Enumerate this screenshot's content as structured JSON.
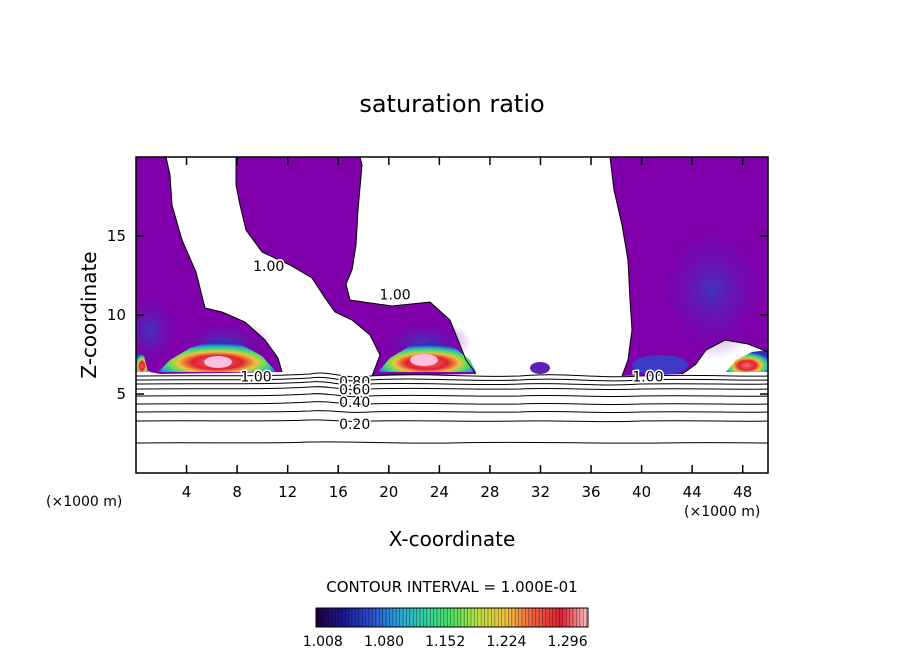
{
  "chart_data": {
    "type": "contour",
    "title": "saturation ratio",
    "xlabel": "X-coordinate",
    "ylabel": "Z-coordinate",
    "x_unit_label": "(×1000 m)",
    "xlim": [
      0,
      50
    ],
    "ylim": [
      0,
      20
    ],
    "x_ticks": [
      "4",
      "8",
      "12",
      "16",
      "20",
      "24",
      "28",
      "32",
      "36",
      "40",
      "44",
      "48"
    ],
    "y_ticks": [
      "5",
      "10",
      "15"
    ],
    "contour_interval_text": "CONTOUR INTERVAL = 1.000E-01",
    "contour_labels": [
      {
        "text": "1.00",
        "x": 10.5,
        "y": 13.1
      },
      {
        "text": "1.00",
        "x": 20.5,
        "y": 11.3
      },
      {
        "text": "1.00",
        "x": 9.5,
        "y": 6.1
      },
      {
        "text": "1.00",
        "x": 40.5,
        "y": 6.1
      },
      {
        "text": "0.80",
        "x": 17.3,
        "y": 5.8
      },
      {
        "text": "0.60",
        "x": 17.3,
        "y": 5.3
      },
      {
        "text": "0.40",
        "x": 17.3,
        "y": 4.5
      },
      {
        "text": "0.20",
        "x": 17.3,
        "y": 3.1
      }
    ],
    "contour_levels_subsaturated": [
      0.1,
      0.2,
      0.3,
      0.4,
      0.5,
      0.6,
      0.7,
      0.8,
      0.9
    ],
    "colorbar": {
      "tick_labels": [
        "1.008",
        "1.080",
        "1.152",
        "1.224",
        "1.296"
      ],
      "tick_values": [
        1.008,
        1.08,
        1.152,
        1.224,
        1.296
      ],
      "range": [
        1.0,
        1.32
      ],
      "colors": [
        "#200040",
        "#1a1a90",
        "#2a4ad0",
        "#2aa0d8",
        "#30d0a0",
        "#50e060",
        "#c0e040",
        "#f0c040",
        "#f06040",
        "#e02030",
        "#ffc0c0"
      ]
    },
    "palette": {
      "supersat_base": "#7f00aa",
      "supersat_deep": "#4a1aa0",
      "high": "#e02030",
      "peak": "#ffc0e0"
    }
  }
}
